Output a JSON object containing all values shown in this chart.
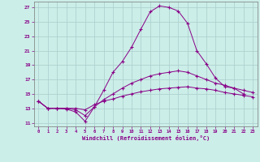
{
  "xlabel": "Windchill (Refroidissement éolien,°C)",
  "background_color": "#cceee8",
  "grid_color": "#aacccc",
  "line_color": "#880088",
  "xlim": [
    -0.5,
    23.5
  ],
  "ylim": [
    10.5,
    27.8
  ],
  "yticks": [
    11,
    13,
    15,
    17,
    19,
    21,
    23,
    25,
    27
  ],
  "xticks": [
    0,
    1,
    2,
    3,
    4,
    5,
    6,
    7,
    8,
    9,
    10,
    11,
    12,
    13,
    14,
    15,
    16,
    17,
    18,
    19,
    20,
    21,
    22,
    23
  ],
  "line1_x": [
    0,
    1,
    2,
    3,
    4,
    5,
    6,
    7,
    8,
    9,
    10,
    11,
    12,
    13,
    14,
    15,
    16,
    17,
    18,
    19,
    20,
    21,
    22
  ],
  "line1_y": [
    14.0,
    13.0,
    13.0,
    12.9,
    12.5,
    11.2,
    13.2,
    15.5,
    18.0,
    19.5,
    21.5,
    24.0,
    26.4,
    27.2,
    27.0,
    26.5,
    24.8,
    21.0,
    19.2,
    17.2,
    16.0,
    15.8,
    15.0
  ],
  "line2_x": [
    0,
    1,
    2,
    3,
    4,
    5,
    6,
    7,
    8,
    9,
    10,
    11,
    12,
    13,
    14,
    15,
    16,
    17,
    18,
    19,
    20,
    21,
    22,
    23
  ],
  "line2_y": [
    14.0,
    13.0,
    13.0,
    13.0,
    12.8,
    12.0,
    13.2,
    14.2,
    15.0,
    15.8,
    16.5,
    17.0,
    17.5,
    17.8,
    18.0,
    18.2,
    18.0,
    17.5,
    17.0,
    16.5,
    16.2,
    15.8,
    15.5,
    15.2
  ],
  "line3_x": [
    0,
    1,
    2,
    3,
    4,
    5,
    6,
    7,
    8,
    9,
    10,
    11,
    12,
    13,
    14,
    15,
    16,
    17,
    18,
    19,
    20,
    21,
    22,
    23
  ],
  "line3_y": [
    14.0,
    13.0,
    13.0,
    13.0,
    13.0,
    12.8,
    13.5,
    14.0,
    14.3,
    14.7,
    15.0,
    15.3,
    15.5,
    15.7,
    15.8,
    15.9,
    16.0,
    15.8,
    15.7,
    15.5,
    15.2,
    15.0,
    14.8,
    14.6
  ]
}
